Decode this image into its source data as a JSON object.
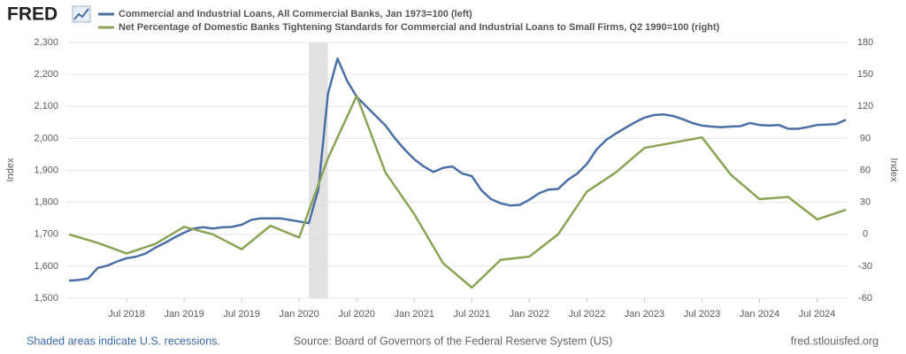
{
  "chart_data": {
    "type": "line",
    "logo": "FRED",
    "ylabel": "Index",
    "y2label": "Index",
    "note": "Shaded areas indicate U.S. recessions.",
    "source": "Source: Board of Governors of the Federal Reserve System (US)",
    "site": "fred.stlouisfed.org",
    "grid": true,
    "recessions": [
      [
        "2020-02",
        "2020-04"
      ]
    ],
    "recession_color": "#e1e1e1",
    "xlim": [
      "2018-01",
      "2024-10"
    ],
    "xticks": [
      {
        "value": "2018-07",
        "label": "Jul 2018"
      },
      {
        "value": "2019-01",
        "label": "Jan 2019"
      },
      {
        "value": "2019-07",
        "label": "Jul 2019"
      },
      {
        "value": "2020-01",
        "label": "Jan 2020"
      },
      {
        "value": "2020-07",
        "label": "Jul 2020"
      },
      {
        "value": "2021-01",
        "label": "Jan 2021"
      },
      {
        "value": "2021-07",
        "label": "Jul 2021"
      },
      {
        "value": "2022-01",
        "label": "Jan 2022"
      },
      {
        "value": "2022-07",
        "label": "Jul 2022"
      },
      {
        "value": "2023-01",
        "label": "Jan 2023"
      },
      {
        "value": "2023-07",
        "label": "Jul 2023"
      },
      {
        "value": "2024-01",
        "label": "Jan 2024"
      },
      {
        "value": "2024-07",
        "label": "Jul 2024"
      }
    ],
    "ylim": [
      1500,
      2300
    ],
    "yticks": [
      {
        "value": 1500,
        "label": "1,500"
      },
      {
        "value": 1600,
        "label": "1,600"
      },
      {
        "value": 1700,
        "label": "1,700"
      },
      {
        "value": 1800,
        "label": "1,800"
      },
      {
        "value": 1900,
        "label": "1,900"
      },
      {
        "value": 2000,
        "label": "2,000"
      },
      {
        "value": 2100,
        "label": "2,100"
      },
      {
        "value": 2200,
        "label": "2,200"
      },
      {
        "value": 2300,
        "label": "2,300"
      }
    ],
    "y2lim": [
      -60,
      180
    ],
    "y2ticks": [
      -60,
      -30,
      0,
      30,
      60,
      90,
      120,
      150,
      180
    ],
    "x": [
      "2018-01",
      "2018-02",
      "2018-03",
      "2018-04",
      "2018-05",
      "2018-06",
      "2018-07",
      "2018-08",
      "2018-09",
      "2018-10",
      "2018-11",
      "2018-12",
      "2019-01",
      "2019-02",
      "2019-03",
      "2019-04",
      "2019-05",
      "2019-06",
      "2019-07",
      "2019-08",
      "2019-09",
      "2019-10",
      "2019-11",
      "2019-12",
      "2020-01",
      "2020-02",
      "2020-03",
      "2020-04",
      "2020-05",
      "2020-06",
      "2020-07",
      "2020-08",
      "2020-09",
      "2020-10",
      "2020-11",
      "2020-12",
      "2021-01",
      "2021-02",
      "2021-03",
      "2021-04",
      "2021-05",
      "2021-06",
      "2021-07",
      "2021-08",
      "2021-09",
      "2021-10",
      "2021-11",
      "2021-12",
      "2022-01",
      "2022-02",
      "2022-03",
      "2022-04",
      "2022-05",
      "2022-06",
      "2022-07",
      "2022-08",
      "2022-09",
      "2022-10",
      "2022-11",
      "2022-12",
      "2023-01",
      "2023-02",
      "2023-03",
      "2023-04",
      "2023-05",
      "2023-06",
      "2023-07",
      "2023-08",
      "2023-09",
      "2023-10",
      "2023-11",
      "2023-12",
      "2024-01",
      "2024-02",
      "2024-03",
      "2024-04",
      "2024-05",
      "2024-06",
      "2024-07",
      "2024-08",
      "2024-09",
      "2024-10"
    ],
    "series": [
      {
        "name": "Commercial and Industrial Loans, All Commercial Banks, Jan 1973=100 (left)",
        "color": "#4c6fa6",
        "values": [
          1555,
          1557,
          1562,
          1595,
          1602,
          1615,
          1625,
          1630,
          1640,
          1658,
          1673,
          1690,
          1705,
          1718,
          1722,
          1718,
          1722,
          1723,
          1730,
          1745,
          1750,
          1750,
          1750,
          1745,
          1740,
          1735,
          1840,
          2140,
          2250,
          2180,
          2130,
          2100,
          2070,
          2040,
          2000,
          1965,
          1935,
          1912,
          1895,
          1908,
          1912,
          1890,
          1882,
          1838,
          1810,
          1797,
          1790,
          1792,
          1808,
          1828,
          1840,
          1842,
          1870,
          1890,
          1920,
          1965,
          1995,
          2015,
          2033,
          2050,
          2065,
          2073,
          2075,
          2070,
          2060,
          2048,
          2040,
          2037,
          2035,
          2037,
          2038,
          2048,
          2042,
          2040,
          2042,
          2030,
          2030,
          2035,
          2042,
          2043,
          2045,
          2058
        ]
      },
      {
        "name": "Net Percentage of Domestic Banks Tightening Standards for Commercial and Industrial Loans to Small Firms, Q2 1990=100 (right)",
        "color": "#8aa356",
        "axis": "y2",
        "x": [
          "2018-01",
          "2018-04",
          "2018-07",
          "2018-10",
          "2019-01",
          "2019-04",
          "2019-07",
          "2019-10",
          "2020-01",
          "2020-04",
          "2020-07",
          "2020-10",
          "2021-01",
          "2021-04",
          "2021-07",
          "2021-10",
          "2022-01",
          "2022-04",
          "2022-07",
          "2022-10",
          "2023-01",
          "2023-04",
          "2023-07",
          "2023-10",
          "2024-01",
          "2024-04",
          "2024-07",
          "2024-10"
        ],
        "values": [
          0,
          -8,
          -18,
          -9,
          7,
          0,
          -14,
          8,
          -3,
          71.5,
          130,
          58,
          19,
          -27,
          -50,
          -24,
          -21,
          0,
          40,
          58,
          81,
          86,
          91,
          56,
          33,
          35,
          14,
          23
        ]
      }
    ]
  }
}
